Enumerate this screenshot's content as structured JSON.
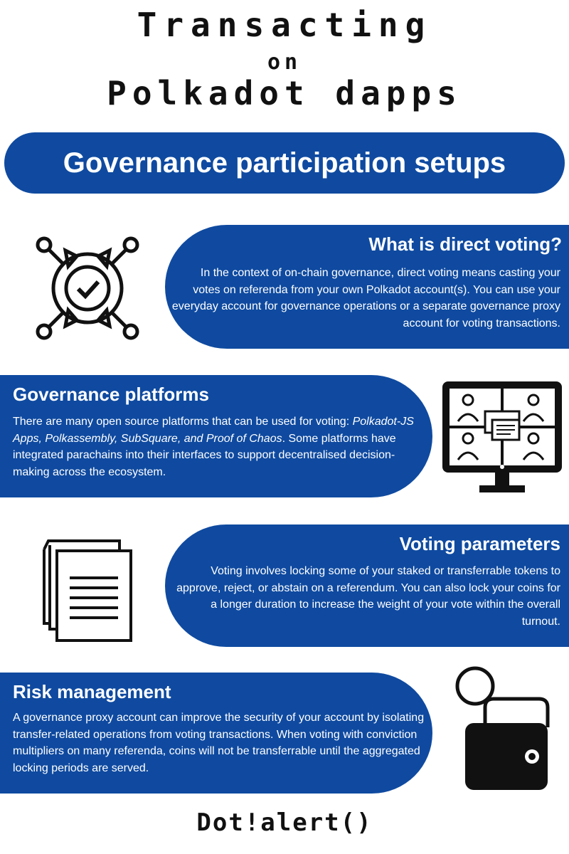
{
  "header": {
    "line1": "Transacting",
    "line2": "on",
    "line3": "Polkadot dapps"
  },
  "banner": {
    "title": "Governance participation setups"
  },
  "sections": [
    {
      "title": "What is direct voting?",
      "text": "In the context of on-chain governance, direct voting means casting your votes on referenda from your own Polkadot account(s). You can use your everyday account for governance operations or a separate governance proxy account for voting transactions.",
      "icon": "vote-check-icon"
    },
    {
      "title": "Governance platforms",
      "text_before": "There are many open source platforms that can be used for voting: ",
      "text_italic": "Polkadot-JS Apps, Polkassembly, SubSquare, and Proof of Chaos",
      "text_after": ". Some platforms have integrated parachains into their interfaces to support decentralised decision-making across the ecosystem.",
      "icon": "video-conference-monitor-icon"
    },
    {
      "title": "Voting parameters",
      "text": "Voting involves locking some of your staked or transferrable tokens to approve, reject, or abstain on a referendum. You can also lock your coins for a longer duration to increase the weight of your vote within the overall turnout.",
      "icon": "documents-icon"
    },
    {
      "title": "Risk management",
      "text": "A governance proxy account can improve the security of your account by isolating transfer-related operations from voting transactions. When voting with conviction multipliers on many referenda, coins will not be transferrable until the aggregated locking periods are served.",
      "icon": "wallet-coin-icon"
    }
  ],
  "footer": {
    "brand": "Dot!alert()"
  },
  "colors": {
    "accent": "#0f4aa0",
    "text": "#111111",
    "card_text": "#ffffff"
  }
}
